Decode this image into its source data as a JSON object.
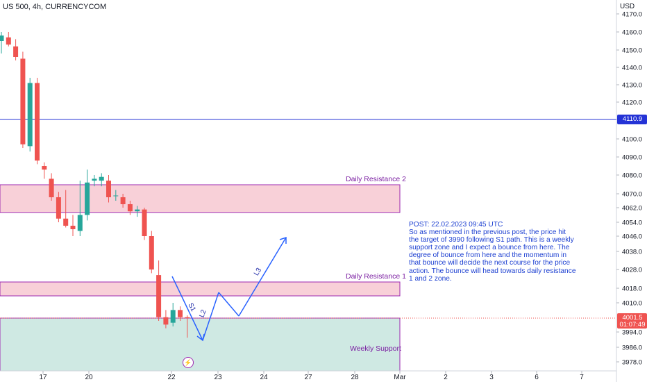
{
  "header": {
    "title": "US 500, 4h, CURRENCYCOM",
    "currency": "USD"
  },
  "colors": {
    "up": "#26a69a",
    "down": "#ef5350",
    "resistance_fill": "#f8d0d8",
    "support_fill": "#cfe9e3",
    "zone_border": "#9c27b0",
    "hline": "#2433d6",
    "note": "#1c3fd1",
    "last_price_bg": "#ef5350"
  },
  "chart_data": {
    "type": "candlestick",
    "title": "US 500, 4h, CURRENCYCOM",
    "ylabel": "USD",
    "ylim": [
      3973,
      4172
    ],
    "y_ticks": [
      "4170.0",
      "4160.0",
      "4150.0",
      "4140.0",
      "4130.0",
      "4120.0",
      "4110.0",
      "4100.0",
      "4090.0",
      "4080.0",
      "4070.0",
      "4062.0",
      "4054.0",
      "4046.0",
      "4038.0",
      "4028.0",
      "4018.0",
      "4010.0",
      "4001.5",
      "3994.0",
      "3986.0",
      "3978.0"
    ],
    "x_ticks": [
      "17",
      "20",
      "22",
      "23",
      "24",
      "27",
      "28",
      "Mar",
      "2",
      "3",
      "6",
      "7"
    ],
    "candles": [
      {
        "o": 4155,
        "h": 4160,
        "l": 4148,
        "c": 4158
      },
      {
        "o": 4157,
        "h": 4160,
        "l": 4152,
        "c": 4153
      },
      {
        "o": 4152,
        "h": 4156,
        "l": 4144,
        "c": 4146
      },
      {
        "o": 4145,
        "h": 4149,
        "l": 4095,
        "c": 4097
      },
      {
        "o": 4096,
        "h": 4134,
        "l": 4093,
        "c": 4131
      },
      {
        "o": 4131,
        "h": 4134,
        "l": 4086,
        "c": 4088
      },
      {
        "o": 4085,
        "h": 4087,
        "l": 4078,
        "c": 4083
      },
      {
        "o": 4078,
        "h": 4081,
        "l": 4066,
        "c": 4068
      },
      {
        "o": 4068,
        "h": 4071,
        "l": 4054,
        "c": 4056
      },
      {
        "o": 4056,
        "h": 4072,
        "l": 4051,
        "c": 4052
      },
      {
        "o": 4052,
        "h": 4058,
        "l": 4046,
        "c": 4050
      },
      {
        "o": 4049,
        "h": 4077,
        "l": 4046,
        "c": 4058
      },
      {
        "o": 4058,
        "h": 4083,
        "l": 4055,
        "c": 4076
      },
      {
        "o": 4077,
        "h": 4080,
        "l": 4074,
        "c": 4078
      },
      {
        "o": 4077,
        "h": 4081,
        "l": 4074,
        "c": 4079
      },
      {
        "o": 4077,
        "h": 4080,
        "l": 4065,
        "c": 4068
      },
      {
        "o": 4069,
        "h": 4072,
        "l": 4066,
        "c": 4069
      },
      {
        "o": 4068,
        "h": 4070,
        "l": 4062,
        "c": 4064
      },
      {
        "o": 4064,
        "h": 4066,
        "l": 4058,
        "c": 4060
      },
      {
        "o": 4060,
        "h": 4063,
        "l": 4057,
        "c": 4061
      },
      {
        "o": 4061,
        "h": 4062,
        "l": 4044,
        "c": 4046
      },
      {
        "o": 4046,
        "h": 4049,
        "l": 4026,
        "c": 4028
      },
      {
        "o": 4025,
        "h": 4033,
        "l": 4000,
        "c": 4002
      },
      {
        "o": 4002,
        "h": 4006,
        "l": 3996,
        "c": 3998
      },
      {
        "o": 3999,
        "h": 4010,
        "l": 3997,
        "c": 4006
      },
      {
        "o": 4006,
        "h": 4008,
        "l": 4000,
        "c": 4002
      },
      {
        "o": 4002,
        "h": 4003,
        "l": 3991,
        "c": 4001.5
      }
    ],
    "zones": [
      {
        "name": "Daily Resistance 2",
        "top": 4075,
        "bottom": 4060,
        "kind": "resistance"
      },
      {
        "name": "Daily Resistance 1",
        "top": 4019.5,
        "bottom": 4012.5,
        "kind": "resistance"
      },
      {
        "name": "Weekly Support",
        "top": 4001.5,
        "bottom": 3972,
        "kind": "support"
      }
    ],
    "horizontal_line": 4110.9,
    "last_price": "4001.5",
    "countdown": "01:07:49",
    "wave_labels": [
      "S1",
      "L2",
      "L3"
    ],
    "grid": false
  },
  "annotation": {
    "lines": [
      "POST: 22.02.2023 09:45 UTC",
      "So as mentioned in the previous post, the price hit",
      "the target of 3990 following S1 path. This is a weekly",
      "support zone and I expect a bounce from here. The",
      "degree of bounce from here and the momentum in",
      "that bounce will decide the next course for the price",
      "action. The bounce will head towards daily resistance",
      "1 and 2 zone."
    ]
  },
  "icons": {
    "alert": "lightning-icon"
  }
}
